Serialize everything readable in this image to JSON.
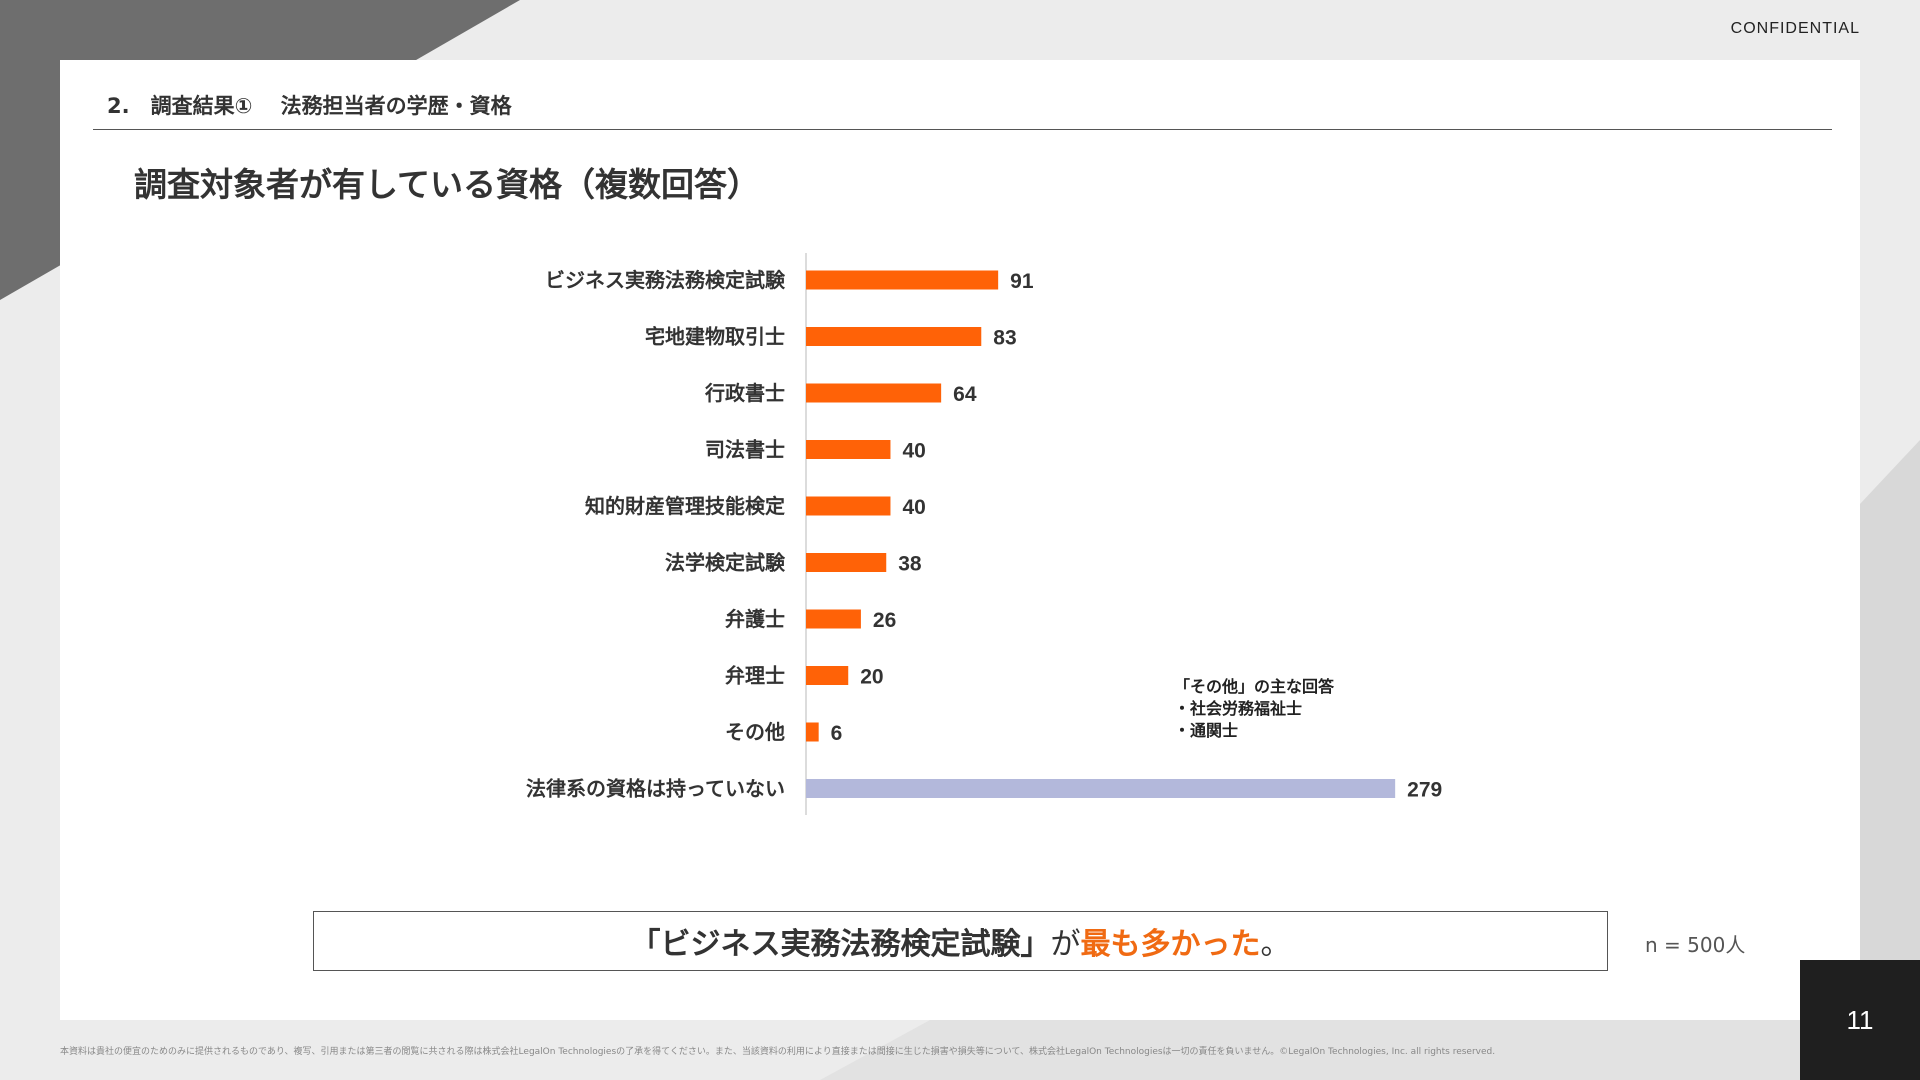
{
  "header": {
    "confidential": "CONFIDENTIAL",
    "section": "2.　調査結果①　 法務担当者の学歴・資格"
  },
  "slide": {
    "title": "調査対象者が有している資格（複数回答）"
  },
  "chart_data": {
    "type": "bar",
    "orientation": "horizontal",
    "categories": [
      "ビジネス実務法務検定試験",
      "宅地建物取引士",
      "行政書士",
      "司法書士",
      "知的財産管理技能検定",
      "法学検定試験",
      "弁護士",
      "弁理士",
      "その他",
      "法律系の資格は持っていない"
    ],
    "values": [
      91,
      83,
      64,
      40,
      40,
      38,
      26,
      20,
      6,
      279
    ],
    "colors": [
      "#ff6207",
      "#ff6207",
      "#ff6207",
      "#ff6207",
      "#ff6207",
      "#ff6207",
      "#ff6207",
      "#ff6207",
      "#ff6207",
      "#b3b8db"
    ],
    "data_labels": true,
    "grid": false
  },
  "callout": {
    "title": "「その他」の主な回答",
    "items": [
      "・社会労務福祉士",
      "・通関士"
    ]
  },
  "summary": {
    "open": "「",
    "emphasis": "ビジネス実務法務検定試験",
    "close": "」",
    "particle": "が",
    "highlight": "最も多かった",
    "end": "。"
  },
  "sample_size": "n = 500人",
  "footer": "本資料は貴社の便宜のためのみに提供されるものであり、複写、引用または第三者の閲覧に共される際は株式会社LegalOn Technologiesの了承を得てください。また、当該資料の利用により直接または間接に生じた損害や損失等について、株式会社LegalOn Technologiesは一切の責任を負いません。©LegalOn Technologies, Inc. all rights reserved.",
  "page_number": "11",
  "colors": {
    "accent": "#f06a12",
    "bar_orange": "#ff6207",
    "bar_lavender": "#b3b8db"
  }
}
